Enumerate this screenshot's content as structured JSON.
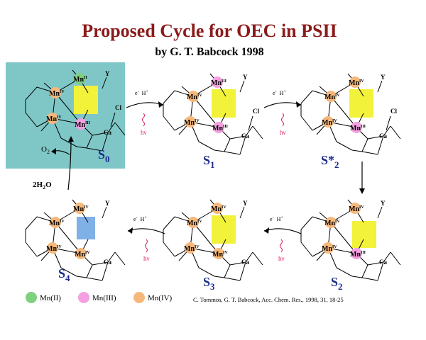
{
  "title": "Proposed Cycle for OEC in PSII",
  "subtitle": "by  G. T. Babcock 1998",
  "citation": "C. Tommos, G. T. Babcock, Acc. Chem. Res., 1998, 31, 18-25",
  "colors": {
    "title": "#8b1a1a",
    "state_label": "#1a2a8c",
    "s0_panel": "#7fc7c7",
    "proton_box": "#f2f23a",
    "peroxide_box": "#7fb0e6",
    "mn2": "#7fd07f",
    "mn3": "#f4a0e0",
    "mn4": "#f6b87a",
    "hv": "#e0205a"
  },
  "legend": [
    {
      "label": "Mn(II)",
      "color": "#7fd07f"
    },
    {
      "label": "Mn(III)",
      "color": "#f4a0e0"
    },
    {
      "label": "Mn(IV)",
      "color": "#f6b87a"
    }
  ],
  "states": [
    {
      "id": "s0",
      "name": "S",
      "sub": "0",
      "mn": [
        {
          "t": "Mn",
          "sup": "II",
          "kind": "mn2"
        },
        {
          "t": "Mn",
          "sup": "IV",
          "kind": "mn4"
        },
        {
          "t": "Mn",
          "sup": "IV",
          "kind": "mn4"
        },
        {
          "t": "Mn",
          "sup": "III",
          "kind": "mn3"
        }
      ],
      "cl": "Cl",
      "ca": "Ca",
      "y": "Y"
    },
    {
      "id": "s1",
      "name": "S",
      "sub": "1",
      "mn": [
        {
          "t": "Mn",
          "sup": "III",
          "kind": "mn3"
        },
        {
          "t": "Mn",
          "sup": "IV",
          "kind": "mn4"
        },
        {
          "t": "Mn",
          "sup": "IV",
          "kind": "mn4"
        },
        {
          "t": "Mn",
          "sup": "III",
          "kind": "mn3"
        }
      ],
      "cl": "Cl",
      "ca": "Ca",
      "y": "Y"
    },
    {
      "id": "s2star",
      "name": "S*",
      "sub": "2",
      "mn": [
        {
          "t": "Mn",
          "sup": "IV",
          "kind": "mn4"
        },
        {
          "t": "Mn",
          "sup": "IV",
          "kind": "mn4"
        },
        {
          "t": "Mn",
          "sup": "IV",
          "kind": "mn4"
        },
        {
          "t": "Mn",
          "sup": "III",
          "kind": "mn3"
        }
      ],
      "cl": "Cl",
      "ca": "Ca",
      "y": "Y"
    },
    {
      "id": "s2",
      "name": "S",
      "sub": "2",
      "mn": [
        {
          "t": "Mn",
          "sup": "IV",
          "kind": "mn4"
        },
        {
          "t": "Mn",
          "sup": "IV",
          "kind": "mn4"
        },
        {
          "t": "Mn",
          "sup": "IV",
          "kind": "mn4"
        },
        {
          "t": "Mn",
          "sup": "III",
          "kind": "mn3"
        }
      ],
      "cl": "",
      "ca": "Ca",
      "y": "Y"
    },
    {
      "id": "s3",
      "name": "S",
      "sub": "3",
      "mn": [
        {
          "t": "Mn",
          "sup": "IV",
          "kind": "mn4"
        },
        {
          "t": "Mn",
          "sup": "IV",
          "kind": "mn4"
        },
        {
          "t": "Mn",
          "sup": "IV",
          "kind": "mn4"
        },
        {
          "t": "Mn",
          "sup": "IV",
          "kind": "mn4"
        }
      ],
      "cl": "",
      "ca": "Ca",
      "y": "Y"
    },
    {
      "id": "s4",
      "name": "S",
      "sub": "4",
      "mn": [
        {
          "t": "Mn",
          "sup": "IV",
          "kind": "mn4"
        },
        {
          "t": "Mn",
          "sup": "IV",
          "kind": "mn4"
        },
        {
          "t": "Mn",
          "sup": "IV",
          "kind": "mn4"
        },
        {
          "t": "Mn",
          "sup": "IV",
          "kind": "mn4"
        }
      ],
      "cl": "",
      "ca": "Ca",
      "y": "Y"
    }
  ],
  "transitions": {
    "electron": "e",
    "proton": "H",
    "light": "hν",
    "oxygen": "O",
    "oxygen_sub": "2",
    "water": "2H",
    "water_sub": "2",
    "water_tail": "O"
  }
}
